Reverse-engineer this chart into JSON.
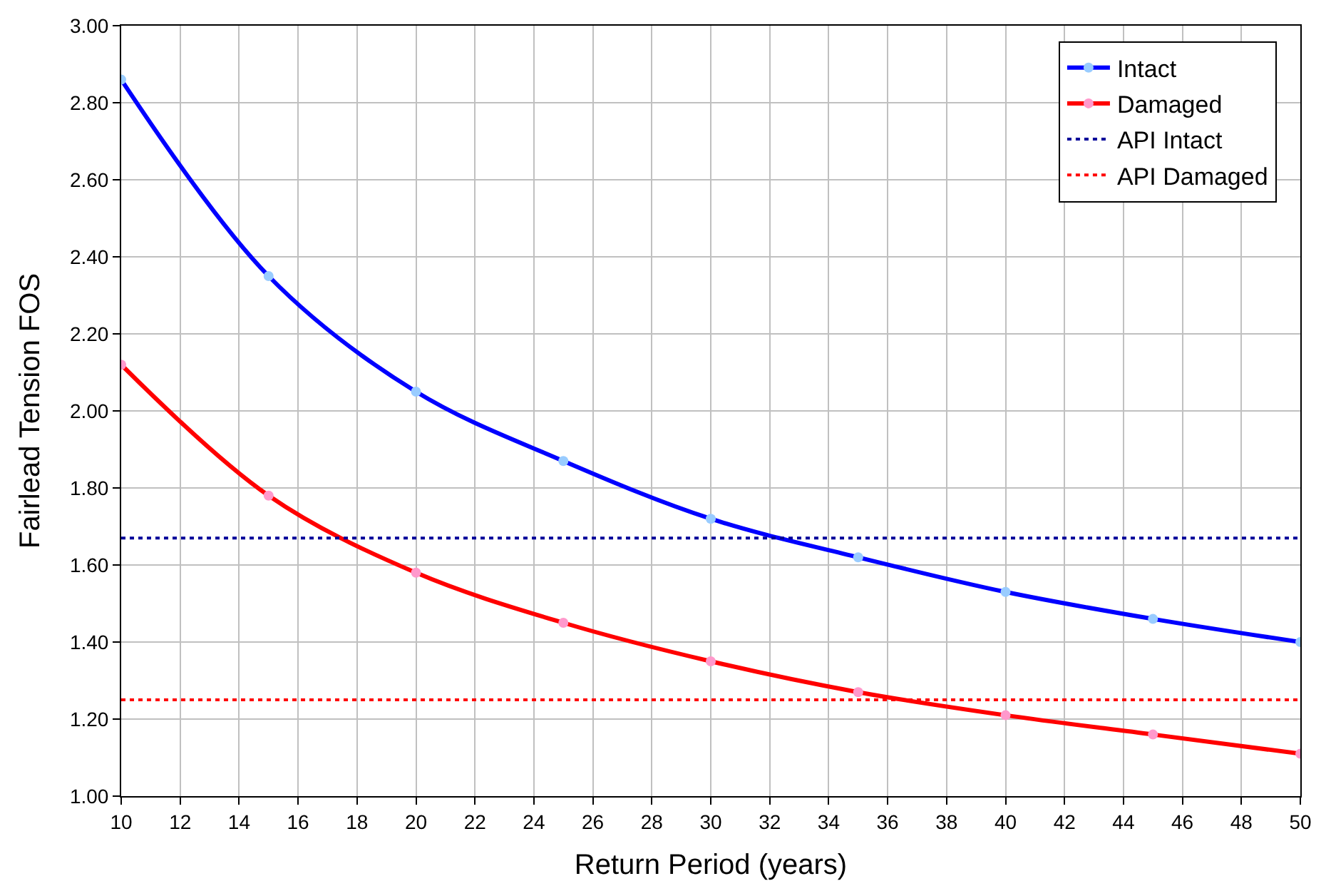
{
  "chart_data": {
    "type": "line",
    "xlabel": "Return Period (years)",
    "ylabel": "Fairlead Tension FOS",
    "x": [
      10,
      15,
      20,
      25,
      30,
      35,
      40,
      45,
      50
    ],
    "series": [
      {
        "name": "Intact",
        "color": "#0000ff",
        "colors": [
          "#99ccff",
          "#99ccff",
          "#99ccff",
          "#99ccff",
          "#99ccff",
          "#99ccff",
          "#99ccff",
          "#99ccff",
          "#99ccff"
        ],
        "values": [
          2.86,
          2.35,
          2.05,
          1.87,
          1.72,
          1.62,
          1.53,
          1.46,
          1.4
        ]
      },
      {
        "name": "Damaged",
        "color": "#ff0000",
        "colors": [
          "#ff99cc",
          "#ff99cc",
          "#ff99cc",
          "#ff99cc",
          "#ff99cc",
          "#ff99cc",
          "#ff99cc",
          "#ff99cc",
          "#ff99cc"
        ],
        "values": [
          2.12,
          1.78,
          1.58,
          1.45,
          1.35,
          1.27,
          1.21,
          1.16,
          1.11
        ]
      }
    ],
    "ref_lines": [
      {
        "axis": "y",
        "value": 1.67,
        "label": "API Intact",
        "color": "#000099",
        "line_style": "dotted"
      },
      {
        "axis": "y",
        "value": 1.25,
        "label": "API Damaged",
        "color": "#ff0000",
        "line_style": "dotted"
      }
    ],
    "xlim": [
      10,
      50
    ],
    "xticks": [
      10,
      12,
      14,
      16,
      18,
      20,
      22,
      24,
      26,
      28,
      30,
      32,
      34,
      36,
      38,
      40,
      42,
      44,
      46,
      48,
      50
    ],
    "ylim": [
      1.0,
      3.0
    ],
    "yticks": [
      {
        "value": 1.0,
        "label": "1.00"
      },
      {
        "value": 1.2,
        "label": "1.20"
      },
      {
        "value": 1.4,
        "label": "1.40"
      },
      {
        "value": 1.6,
        "label": "1.60"
      },
      {
        "value": 1.8,
        "label": "1.80"
      },
      {
        "value": 2.0,
        "label": "2.00"
      },
      {
        "value": 2.2,
        "label": "2.20"
      },
      {
        "value": 2.4,
        "label": "2.40"
      },
      {
        "value": 2.6,
        "label": "2.60"
      },
      {
        "value": 2.8,
        "label": "2.80"
      },
      {
        "value": 3.0,
        "label": "3.00"
      }
    ],
    "grid": true,
    "legend": "top right",
    "marker": "circle",
    "line_style": "solid"
  }
}
